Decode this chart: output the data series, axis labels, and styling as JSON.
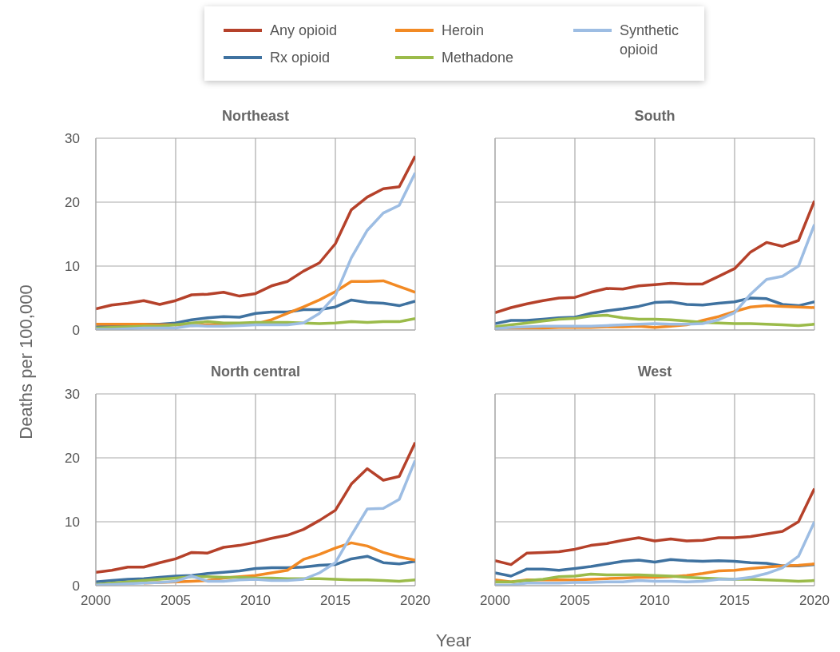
{
  "chart_data": [
    {
      "type": "line",
      "title": "Northeast",
      "ylabel": "Deaths per 100,000",
      "legend": "top",
      "grid": true,
      "tick_labels": "y",
      "x": [
        2000,
        2001,
        2002,
        2003,
        2004,
        2005,
        2006,
        2007,
        2008,
        2009,
        2010,
        2011,
        2012,
        2013,
        2014,
        2015,
        2016,
        2017,
        2018,
        2019,
        2020
      ],
      "xlim": [
        2000,
        2020
      ],
      "xticks": [
        2000,
        2005,
        2010,
        2015,
        2020
      ],
      "ylim": [
        0,
        30
      ],
      "yticks": [
        0,
        10,
        20,
        30
      ],
      "series": [
        {
          "name": "Any opioid",
          "color": "#b5412a",
          "values": [
            3.3,
            3.9,
            4.2,
            4.6,
            4.0,
            4.6,
            5.5,
            5.6,
            5.9,
            5.3,
            5.7,
            6.9,
            7.6,
            9.2,
            10.5,
            13.5,
            18.8,
            20.8,
            22.1,
            22.4,
            27.2
          ]
        },
        {
          "name": "Rx opioid",
          "color": "#3f72a0",
          "values": [
            0.5,
            0.6,
            0.7,
            0.9,
            0.9,
            1.1,
            1.6,
            1.9,
            2.1,
            2.0,
            2.6,
            2.8,
            2.8,
            3.2,
            3.2,
            3.6,
            4.7,
            4.3,
            4.2,
            3.8,
            4.5
          ]
        },
        {
          "name": "Heroin",
          "color": "#f28a24",
          "values": [
            0.9,
            0.9,
            0.9,
            0.9,
            0.8,
            0.8,
            0.7,
            0.8,
            0.8,
            0.9,
            0.9,
            1.6,
            2.6,
            3.6,
            4.7,
            6.0,
            7.6,
            7.6,
            7.7,
            6.8,
            5.9
          ]
        },
        {
          "name": "Methadone",
          "color": "#9bbb4a",
          "values": [
            0.3,
            0.4,
            0.5,
            0.6,
            0.6,
            0.8,
            1.1,
            1.3,
            1.1,
            1.1,
            1.2,
            1.2,
            1.2,
            1.1,
            1.0,
            1.1,
            1.3,
            1.2,
            1.3,
            1.3,
            1.8
          ]
        },
        {
          "name": "Synthetic opioid",
          "color": "#9dbde3",
          "values": [
            0.1,
            0.1,
            0.2,
            0.3,
            0.3,
            0.3,
            0.7,
            0.6,
            0.6,
            0.7,
            0.8,
            0.8,
            0.8,
            1.1,
            2.6,
            5.4,
            11.3,
            15.6,
            18.3,
            19.5,
            24.6
          ]
        }
      ]
    },
    {
      "type": "line",
      "title": "South",
      "grid": true,
      "tick_labels": false,
      "x": [
        2000,
        2001,
        2002,
        2003,
        2004,
        2005,
        2006,
        2007,
        2008,
        2009,
        2010,
        2011,
        2012,
        2013,
        2014,
        2015,
        2016,
        2017,
        2018,
        2019,
        2020
      ],
      "xlim": [
        2000,
        2020
      ],
      "xticks": [
        2000,
        2005,
        2010,
        2015,
        2020
      ],
      "ylim": [
        0,
        30
      ],
      "yticks": [
        0,
        10,
        20,
        30
      ],
      "series": [
        {
          "color": "#b5412a",
          "values": [
            2.7,
            3.5,
            4.1,
            4.6,
            5.0,
            5.1,
            5.9,
            6.5,
            6.4,
            6.9,
            7.1,
            7.3,
            7.2,
            7.2,
            8.4,
            9.6,
            12.2,
            13.7,
            13.1,
            14.0,
            20.2
          ]
        },
        {
          "color": "#3f72a0",
          "values": [
            1.0,
            1.5,
            1.5,
            1.7,
            1.9,
            2.0,
            2.6,
            3.0,
            3.3,
            3.7,
            4.3,
            4.4,
            4.0,
            3.9,
            4.2,
            4.4,
            5.0,
            4.9,
            4.0,
            3.8,
            4.4
          ]
        },
        {
          "color": "#f28a24",
          "values": [
            0.3,
            0.3,
            0.3,
            0.3,
            0.4,
            0.4,
            0.4,
            0.5,
            0.5,
            0.6,
            0.4,
            0.6,
            0.8,
            1.5,
            2.1,
            2.9,
            3.6,
            3.8,
            3.7,
            3.6,
            3.5
          ]
        },
        {
          "color": "#9bbb4a",
          "values": [
            0.5,
            0.8,
            1.1,
            1.4,
            1.7,
            1.8,
            2.2,
            2.3,
            1.9,
            1.7,
            1.7,
            1.6,
            1.4,
            1.2,
            1.1,
            1.0,
            1.0,
            0.9,
            0.8,
            0.7,
            0.9
          ]
        },
        {
          "color": "#9dbde3",
          "values": [
            0.2,
            0.4,
            0.5,
            0.6,
            0.6,
            0.6,
            0.6,
            0.7,
            0.8,
            0.9,
            1.0,
            0.9,
            0.9,
            1.0,
            1.6,
            2.7,
            5.6,
            7.9,
            8.4,
            10.0,
            16.5
          ]
        }
      ]
    },
    {
      "type": "line",
      "title": "North central",
      "xlabel": "Year",
      "grid": true,
      "x": [
        2000,
        2001,
        2002,
        2003,
        2004,
        2005,
        2006,
        2007,
        2008,
        2009,
        2010,
        2011,
        2012,
        2013,
        2014,
        2015,
        2016,
        2017,
        2018,
        2019,
        2020
      ],
      "xlim": [
        2000,
        2020
      ],
      "xticks": [
        2000,
        2005,
        2010,
        2015,
        2020
      ],
      "ylim": [
        0,
        30
      ],
      "yticks": [
        0,
        10,
        20,
        30
      ],
      "series": [
        {
          "color": "#b5412a",
          "values": [
            2.1,
            2.4,
            2.9,
            2.9,
            3.6,
            4.2,
            5.2,
            5.1,
            6.0,
            6.3,
            6.8,
            7.4,
            7.9,
            8.8,
            10.2,
            11.8,
            15.9,
            18.3,
            16.5,
            17.1,
            22.4
          ]
        },
        {
          "color": "#3f72a0",
          "values": [
            0.6,
            0.8,
            1.0,
            1.1,
            1.3,
            1.5,
            1.6,
            1.9,
            2.1,
            2.3,
            2.7,
            2.8,
            2.8,
            2.9,
            3.2,
            3.3,
            4.2,
            4.6,
            3.6,
            3.4,
            3.8
          ]
        },
        {
          "color": "#f28a24",
          "values": [
            null,
            null,
            null,
            0.4,
            0.5,
            0.6,
            0.7,
            0.8,
            1.2,
            1.4,
            1.6,
            2.0,
            2.4,
            4.1,
            4.9,
            5.9,
            6.7,
            6.2,
            5.2,
            4.5,
            4.0
          ]
        },
        {
          "color": "#9bbb4a",
          "values": [
            0.2,
            0.4,
            0.6,
            0.8,
            1.0,
            1.2,
            1.4,
            1.4,
            1.3,
            1.3,
            1.2,
            1.2,
            1.1,
            1.1,
            1.1,
            1.0,
            0.9,
            0.9,
            0.8,
            0.7,
            0.9
          ]
        },
        {
          "color": "#9dbde3",
          "values": [
            0.1,
            0.2,
            0.3,
            0.4,
            0.5,
            0.7,
            1.5,
            0.7,
            0.7,
            0.9,
            1.0,
            0.8,
            0.8,
            1.0,
            2.0,
            3.6,
            7.9,
            12.0,
            12.1,
            13.5,
            19.6
          ]
        }
      ]
    },
    {
      "type": "line",
      "title": "West",
      "grid": true,
      "tick_labels": "x",
      "x": [
        2000,
        2001,
        2002,
        2003,
        2004,
        2005,
        2006,
        2007,
        2008,
        2009,
        2010,
        2011,
        2012,
        2013,
        2014,
        2015,
        2016,
        2017,
        2018,
        2019,
        2020
      ],
      "xlim": [
        2000,
        2020
      ],
      "xticks": [
        2000,
        2005,
        2010,
        2015,
        2020
      ],
      "ylim": [
        0,
        30
      ],
      "yticks": [
        0,
        10,
        20,
        30
      ],
      "series": [
        {
          "color": "#b5412a",
          "values": [
            3.9,
            3.3,
            5.1,
            5.2,
            5.3,
            5.7,
            6.3,
            6.6,
            7.1,
            7.5,
            7.0,
            7.3,
            7.0,
            7.1,
            7.5,
            7.5,
            7.7,
            8.1,
            8.5,
            10.0,
            15.2
          ]
        },
        {
          "color": "#3f72a0",
          "values": [
            2.0,
            1.5,
            2.6,
            2.6,
            2.4,
            2.7,
            3.0,
            3.4,
            3.8,
            4.0,
            3.7,
            4.1,
            3.9,
            3.8,
            3.9,
            3.8,
            3.6,
            3.5,
            3.1,
            3.1,
            3.3
          ]
        },
        {
          "color": "#f28a24",
          "values": [
            0.9,
            0.6,
            0.9,
            0.9,
            0.9,
            0.9,
            1.0,
            1.1,
            1.2,
            1.3,
            1.3,
            1.4,
            1.6,
            1.9,
            2.3,
            2.4,
            2.7,
            2.9,
            3.1,
            3.2,
            3.4
          ]
        },
        {
          "color": "#9bbb4a",
          "values": [
            0.6,
            0.6,
            0.8,
            1.0,
            1.4,
            1.5,
            1.8,
            1.7,
            1.7,
            1.7,
            1.6,
            1.5,
            1.3,
            1.2,
            1.1,
            1.0,
            1.0,
            0.9,
            0.8,
            0.7,
            0.8
          ]
        },
        {
          "color": "#9dbde3",
          "values": [
            0.1,
            0.1,
            0.4,
            0.4,
            0.4,
            0.5,
            0.5,
            0.6,
            0.6,
            0.8,
            0.7,
            0.7,
            0.6,
            0.7,
            1.0,
            1.0,
            1.3,
            1.9,
            2.8,
            4.6,
            10.0
          ]
        }
      ]
    }
  ]
}
